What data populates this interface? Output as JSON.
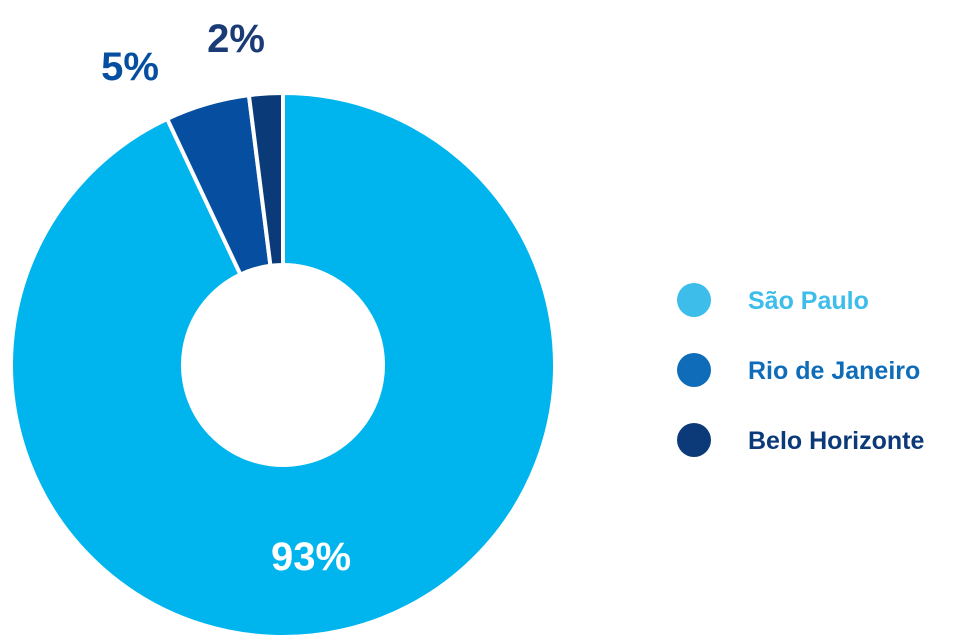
{
  "chart_data": {
    "type": "pie",
    "variant": "donut",
    "categories": [
      "São Paulo",
      "Rio de Janeiro",
      "Belo Horizonte"
    ],
    "values": [
      93,
      5,
      2
    ],
    "unit": "%",
    "data_labels": [
      "93%",
      "5%",
      "2%"
    ],
    "colors": [
      "#00b5ee",
      "#064fa0",
      "#0a3b78"
    ],
    "legend_colors": [
      "#3cbdea",
      "#0f6cb9",
      "#0c3978"
    ],
    "label_colors": [
      "#ffffff",
      "#064fa0",
      "#1b3b76"
    ],
    "legend_position": "right",
    "title": ""
  }
}
